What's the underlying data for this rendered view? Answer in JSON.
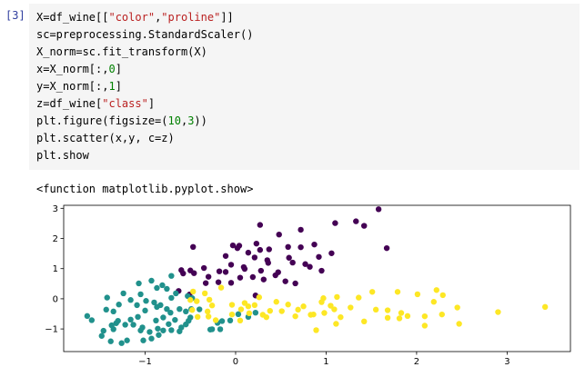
{
  "cell": {
    "prompt": "[3]",
    "code_lines": [
      [
        {
          "t": "X=df_wine[["
        },
        {
          "t": "\"color\"",
          "c": "str"
        },
        {
          "t": ","
        },
        {
          "t": "\"proline\"",
          "c": "str"
        },
        {
          "t": "]]"
        }
      ],
      [
        {
          "t": "sc=preprocessing.StandardScaler()"
        }
      ],
      [
        {
          "t": "X_norm=sc.fit_transform(X)"
        }
      ],
      [
        {
          "t": "x=X_norm[:,"
        },
        {
          "t": "0",
          "c": "num"
        },
        {
          "t": "]"
        }
      ],
      [
        {
          "t": "y=X_norm[:,"
        },
        {
          "t": "1",
          "c": "num"
        },
        {
          "t": "]"
        }
      ],
      [
        {
          "t": "z=df_wine["
        },
        {
          "t": "\"class\"",
          "c": "str"
        },
        {
          "t": "]"
        }
      ],
      [
        {
          "t": "plt.figure(figsize=("
        },
        {
          "t": "10",
          "c": "num"
        },
        {
          "t": ","
        },
        {
          "t": "3",
          "c": "num"
        },
        {
          "t": "))"
        }
      ],
      [
        {
          "t": "plt.scatter(x,y, c=z)"
        }
      ],
      [
        {
          "t": "plt.show"
        }
      ]
    ],
    "output_text": "<function matplotlib.pyplot.show>"
  },
  "chart_data": {
    "type": "scatter",
    "xlim": [
      -1.9,
      3.7
    ],
    "ylim": [
      -1.75,
      3.1
    ],
    "x_ticks": [
      -1,
      0,
      1,
      2,
      3
    ],
    "y_ticks": [
      -1,
      0,
      1,
      2,
      3
    ],
    "x_tick_labels": [
      "−1",
      "0",
      "1",
      "2",
      "3"
    ],
    "y_tick_labels": [
      "−1",
      "0",
      "1",
      "2",
      "3"
    ],
    "grid": false,
    "colors": {
      "1": "#440154",
      "2": "#21918c",
      "3": "#fde725"
    },
    "points": {
      "1": [
        [
          1.58,
          2.97
        ],
        [
          1.33,
          2.57
        ],
        [
          1.1,
          2.51
        ],
        [
          0.72,
          2.29
        ],
        [
          0.58,
          1.72
        ],
        [
          0.72,
          1.71
        ],
        [
          0.27,
          2.45
        ],
        [
          0.48,
          2.13
        ],
        [
          1.42,
          2.42
        ],
        [
          1.67,
          1.68
        ],
        [
          -0.47,
          1.72
        ],
        [
          0.02,
          1.68
        ],
        [
          0.27,
          1.62
        ],
        [
          0.37,
          1.64
        ],
        [
          0.04,
          1.76
        ],
        [
          -0.03,
          1.77
        ],
        [
          0.14,
          1.53
        ],
        [
          0.23,
          1.83
        ],
        [
          0.87,
          1.8
        ],
        [
          1.06,
          1.51
        ],
        [
          0.92,
          1.39
        ],
        [
          0.21,
          1.37
        ],
        [
          -0.11,
          1.42
        ],
        [
          0.35,
          1.28
        ],
        [
          0.63,
          1.2
        ],
        [
          0.82,
          1.06
        ],
        [
          0.77,
          1.15
        ],
        [
          0.95,
          0.93
        ],
        [
          -0.35,
          1.02
        ],
        [
          -0.05,
          1.13
        ],
        [
          -0.6,
          0.95
        ],
        [
          -0.58,
          0.84
        ],
        [
          -0.5,
          0.94
        ],
        [
          -0.46,
          0.85
        ],
        [
          -0.3,
          0.73
        ],
        [
          -0.18,
          0.91
        ],
        [
          -0.33,
          0.52
        ],
        [
          -0.19,
          0.55
        ],
        [
          -0.11,
          0.89
        ],
        [
          0.1,
          0.99
        ],
        [
          0.05,
          0.7
        ],
        [
          0.19,
          0.72
        ],
        [
          0.28,
          0.93
        ],
        [
          0.44,
          0.78
        ],
        [
          0.47,
          0.88
        ],
        [
          0.55,
          0.58
        ],
        [
          0.66,
          0.51
        ],
        [
          0.22,
          0.11
        ],
        [
          -0.51,
          0.14
        ],
        [
          -0.63,
          0.26
        ],
        [
          0.09,
          1.05
        ],
        [
          -0.05,
          0.53
        ],
        [
          0.36,
          1.19
        ],
        [
          0.59,
          1.36
        ],
        [
          0.31,
          0.64
        ]
      ],
      "2": [
        [
          -0.93,
          0.6
        ],
        [
          -1.07,
          0.51
        ],
        [
          -0.71,
          0.76
        ],
        [
          -0.81,
          0.45
        ],
        [
          -0.76,
          0.33
        ],
        [
          -0.87,
          0.36
        ],
        [
          -0.66,
          0.18
        ],
        [
          -0.53,
          0.09
        ],
        [
          -0.48,
          0.02
        ],
        [
          -0.71,
          0.03
        ],
        [
          -1.05,
          0.15
        ],
        [
          -1.24,
          0.18
        ],
        [
          -1.42,
          0.04
        ],
        [
          -1.16,
          -0.04
        ],
        [
          -1.29,
          -0.19
        ],
        [
          -1.43,
          -0.36
        ],
        [
          -1.35,
          -0.42
        ],
        [
          -1.09,
          -0.21
        ],
        [
          -1.0,
          -0.39
        ],
        [
          -0.87,
          -0.27
        ],
        [
          -0.99,
          -0.07
        ],
        [
          -0.9,
          -0.12
        ],
        [
          -0.76,
          -0.34
        ],
        [
          -0.72,
          -0.46
        ],
        [
          -0.62,
          -0.34
        ],
        [
          -0.55,
          -0.42
        ],
        [
          -0.49,
          -0.34
        ],
        [
          -0.83,
          -0.21
        ],
        [
          -1.08,
          -0.6
        ],
        [
          -1.16,
          -0.69
        ],
        [
          -1.3,
          -0.73
        ],
        [
          -1.32,
          -0.81
        ],
        [
          -1.22,
          -0.86
        ],
        [
          -1.13,
          -0.86
        ],
        [
          -1.03,
          -0.95
        ],
        [
          -1.05,
          -1.05
        ],
        [
          -0.95,
          -1.1
        ],
        [
          -0.85,
          -1.2
        ],
        [
          -0.93,
          -1.32
        ],
        [
          -1.02,
          -1.38
        ],
        [
          -1.2,
          -1.38
        ],
        [
          -1.26,
          -1.47
        ],
        [
          -1.38,
          -1.41
        ],
        [
          -1.48,
          -1.23
        ],
        [
          -1.46,
          -1.06
        ],
        [
          -1.35,
          -1.01
        ],
        [
          -1.37,
          -0.88
        ],
        [
          -1.59,
          -0.71
        ],
        [
          -1.64,
          -0.57
        ],
        [
          -0.86,
          -0.99
        ],
        [
          -0.8,
          -1.05
        ],
        [
          -0.71,
          -1.04
        ],
        [
          -0.74,
          -0.84
        ],
        [
          -0.6,
          -0.95
        ],
        [
          -0.55,
          -0.85
        ],
        [
          -0.52,
          -0.73
        ],
        [
          -0.67,
          -0.7
        ],
        [
          -0.8,
          -0.62
        ],
        [
          -0.88,
          -0.72
        ],
        [
          -0.62,
          -1.08
        ],
        [
          -0.5,
          -0.62
        ],
        [
          -0.4,
          -0.35
        ],
        [
          -0.15,
          -0.74
        ],
        [
          -0.06,
          -0.72
        ],
        [
          -0.17,
          -1.01
        ],
        [
          -0.26,
          -1.01
        ],
        [
          -0.2,
          -0.8
        ],
        [
          0.03,
          -0.51
        ],
        [
          0.22,
          -0.46
        ],
        [
          0.14,
          -0.6
        ],
        [
          -0.28,
          -1.02
        ]
      ],
      "3": [
        [
          3.42,
          -0.27
        ],
        [
          2.9,
          -0.44
        ],
        [
          2.45,
          -0.29
        ],
        [
          2.28,
          -0.52
        ],
        [
          2.22,
          0.29
        ],
        [
          2.29,
          0.12
        ],
        [
          2.19,
          -0.1
        ],
        [
          2.47,
          -0.83
        ],
        [
          2.09,
          -0.89
        ],
        [
          1.9,
          -0.57
        ],
        [
          1.81,
          -0.65
        ],
        [
          1.79,
          0.23
        ],
        [
          1.68,
          -0.63
        ],
        [
          1.55,
          -0.36
        ],
        [
          1.51,
          0.23
        ],
        [
          1.42,
          -0.75
        ],
        [
          1.36,
          0.04
        ],
        [
          1.27,
          -0.29
        ],
        [
          1.16,
          -0.61
        ],
        [
          1.12,
          0.06
        ],
        [
          1.09,
          -0.35
        ],
        [
          1.05,
          -0.23
        ],
        [
          0.98,
          -0.47
        ],
        [
          0.97,
          0.02
        ],
        [
          0.95,
          -0.11
        ],
        [
          0.86,
          -0.52
        ],
        [
          0.75,
          -0.25
        ],
        [
          0.69,
          -0.36
        ],
        [
          0.66,
          -0.58
        ],
        [
          0.51,
          -0.41
        ],
        [
          0.38,
          -0.4
        ],
        [
          0.34,
          -0.61
        ],
        [
          0.3,
          -0.53
        ],
        [
          0.21,
          -0.21
        ],
        [
          0.1,
          -0.14
        ],
        [
          0.15,
          -0.48
        ],
        [
          0.05,
          -0.72
        ],
        [
          0.06,
          -0.35
        ],
        [
          -0.04,
          -0.52
        ],
        [
          -0.22,
          -0.71
        ],
        [
          -0.3,
          -0.59
        ],
        [
          -0.31,
          -0.42
        ],
        [
          -0.26,
          -0.22
        ],
        [
          -0.42,
          -0.6
        ],
        [
          -0.48,
          -0.37
        ],
        [
          -0.5,
          -0.04
        ],
        [
          -0.43,
          -0.08
        ],
        [
          -0.47,
          0.24
        ],
        [
          -0.34,
          0.18
        ],
        [
          -0.29,
          -0.03
        ],
        [
          -0.16,
          0.37
        ],
        [
          -0.04,
          -0.2
        ],
        [
          0.14,
          -0.25
        ],
        [
          0.26,
          0.05
        ],
        [
          0.45,
          -0.1
        ],
        [
          0.58,
          -0.19
        ],
        [
          0.83,
          -0.53
        ],
        [
          0.89,
          -1.04
        ],
        [
          1.11,
          -0.83
        ],
        [
          1.83,
          -0.47
        ],
        [
          2.01,
          0.15
        ],
        [
          2.09,
          -0.58
        ],
        [
          1.68,
          -0.38
        ]
      ]
    }
  }
}
